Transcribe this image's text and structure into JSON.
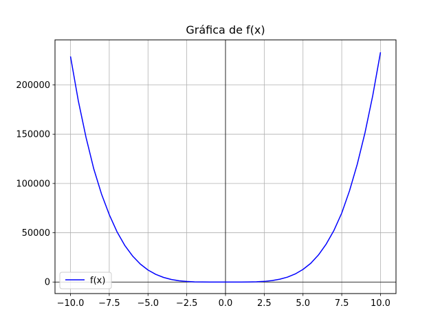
{
  "chart_data": {
    "type": "line",
    "title": "Gráfica de f(x)",
    "xlabel": "",
    "ylabel": "",
    "xlim": [
      -11.0,
      11.0
    ],
    "ylim": [
      -11700,
      245700
    ],
    "xticks": [
      -10.0,
      -7.5,
      -5.0,
      -2.5,
      0.0,
      2.5,
      5.0,
      7.5,
      10.0
    ],
    "xtick_labels": [
      "−10.0",
      "−7.5",
      "−5.0",
      "−2.5",
      "0.0",
      "2.5",
      "5.0",
      "7.5",
      "10.0"
    ],
    "yticks": [
      0,
      50000,
      100000,
      150000,
      200000
    ],
    "ytick_labels": [
      "0",
      "50000",
      "100000",
      "150000",
      "200000"
    ],
    "grid": true,
    "axis_lines_at_zero": true,
    "legend_position": "lower-left",
    "series": [
      {
        "name": "f(x)",
        "color": "#0000ff",
        "x": [
          -10,
          -9.5,
          -9,
          -8.5,
          -8,
          -7.5,
          -7,
          -6.5,
          -6,
          -5.5,
          -5,
          -4.5,
          -4,
          -3.5,
          -3,
          -2.5,
          -2,
          -1.5,
          -1,
          -0.5,
          0,
          0.5,
          1,
          1.5,
          2,
          2.5,
          3,
          3.5,
          4,
          4.5,
          5,
          5.5,
          6,
          6.5,
          7,
          7.5,
          8,
          8.5,
          9,
          9.5,
          10
        ],
        "y": [
          228900,
          184200,
          146900,
          114900,
          89300,
          68400,
          51000,
          37200,
          26500,
          18300,
          12200,
          7800,
          4700,
          2600,
          1300,
          560,
          200,
          60,
          10,
          2,
          0,
          3,
          15,
          75,
          250,
          640,
          1450,
          2850,
          5000,
          8200,
          12800,
          19000,
          27500,
          38600,
          52500,
          70000,
          92500,
          119500,
          151500,
          189200,
          233100
        ]
      }
    ]
  }
}
